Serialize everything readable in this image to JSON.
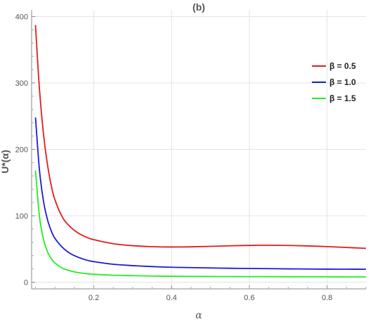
{
  "chart_data": {
    "type": "line",
    "title": "(b)",
    "xlabel": "α",
    "ylabel": "U*(α)",
    "xlim": [
      0.04,
      0.9
    ],
    "ylim": [
      -10,
      410
    ],
    "xticks": [
      0.2,
      0.4,
      0.6,
      0.8
    ],
    "xtick_labels": [
      "0.2",
      "0.4",
      "0.6",
      "0.8"
    ],
    "yticks": [
      0,
      100,
      200,
      300,
      400
    ],
    "ytick_labels": [
      "0",
      "100",
      "200",
      "300",
      "400"
    ],
    "grid": true,
    "legend_position": "top-right",
    "series": [
      {
        "name": "β = 0.5",
        "color": "#e41a1a",
        "x": [
          0.05,
          0.06,
          0.07,
          0.08,
          0.09,
          0.1,
          0.12,
          0.14,
          0.16,
          0.18,
          0.2,
          0.25,
          0.3,
          0.35,
          0.4,
          0.45,
          0.5,
          0.55,
          0.6,
          0.65,
          0.7,
          0.75,
          0.8,
          0.85,
          0.9
        ],
        "y": [
          387,
          292,
          226,
          180,
          147,
          124,
          97,
          83,
          74,
          68,
          64,
          58,
          55,
          53.5,
          53,
          53.3,
          54,
          54.8,
          55.4,
          55.6,
          55.3,
          54.6,
          53.6,
          52.3,
          51
        ]
      },
      {
        "name": "β = 1.0",
        "color": "#1a1adc",
        "x": [
          0.05,
          0.06,
          0.07,
          0.08,
          0.09,
          0.1,
          0.12,
          0.14,
          0.16,
          0.18,
          0.2,
          0.25,
          0.3,
          0.35,
          0.4,
          0.45,
          0.5,
          0.55,
          0.6,
          0.65,
          0.7,
          0.75,
          0.8,
          0.85,
          0.9
        ],
        "y": [
          248,
          170,
          124,
          96,
          78,
          66,
          52,
          43,
          37.5,
          33.5,
          31,
          27,
          25,
          23.5,
          22.5,
          22,
          21.5,
          21,
          20.7,
          20.4,
          20.1,
          19.9,
          19.7,
          19.6,
          19.5
        ]
      },
      {
        "name": "β = 1.5",
        "color": "#22ee22",
        "x": [
          0.05,
          0.06,
          0.07,
          0.08,
          0.09,
          0.1,
          0.12,
          0.14,
          0.16,
          0.18,
          0.2,
          0.25,
          0.3,
          0.35,
          0.4,
          0.45,
          0.5,
          0.55,
          0.6,
          0.65,
          0.7,
          0.75,
          0.8,
          0.85,
          0.9
        ],
        "y": [
          168,
          100,
          66,
          47,
          36,
          29,
          21,
          17,
          14.5,
          13,
          12,
          10.5,
          9.8,
          9.3,
          9,
          8.8,
          8.6,
          8.5,
          8.4,
          8.3,
          8.2,
          8.1,
          8.1,
          8,
          8
        ]
      }
    ]
  }
}
